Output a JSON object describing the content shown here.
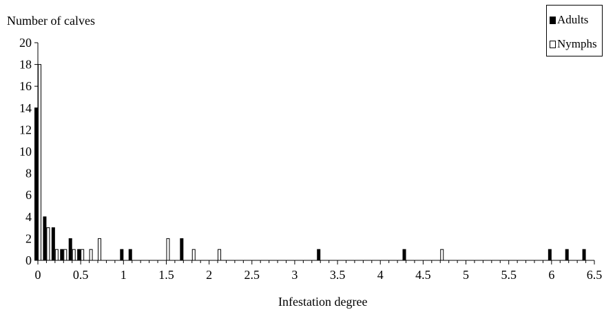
{
  "chart_data": {
    "type": "bar",
    "xlabel": "Infestation degree",
    "ylabel": "Number of calves",
    "xlim": [
      0,
      6.5
    ],
    "ylim": [
      0,
      20
    ],
    "x_ticks": [
      "0",
      "0.5",
      "1",
      "1.5",
      "2",
      "2.5",
      "3",
      "3.5",
      "4",
      "4.5",
      "5",
      "5.5",
      "6",
      "6.5"
    ],
    "y_ticks": [
      "0",
      "2",
      "4",
      "6",
      "8",
      "10",
      "12",
      "14",
      "16",
      "18",
      "20"
    ],
    "legend_position": "top-right",
    "series": [
      {
        "name": "Adults",
        "color": "#000000",
        "points": [
          {
            "x": 0,
            "y": 14
          },
          {
            "x": 0.1,
            "y": 4
          },
          {
            "x": 0.2,
            "y": 3
          },
          {
            "x": 0.3,
            "y": 1
          },
          {
            "x": 0.4,
            "y": 2
          },
          {
            "x": 0.5,
            "y": 1
          },
          {
            "x": 1.0,
            "y": 1
          },
          {
            "x": 1.1,
            "y": 1
          },
          {
            "x": 1.7,
            "y": 2
          },
          {
            "x": 3.3,
            "y": 1
          },
          {
            "x": 4.3,
            "y": 1
          },
          {
            "x": 6.0,
            "y": 1
          },
          {
            "x": 6.2,
            "y": 1
          },
          {
            "x": 6.4,
            "y": 1
          }
        ]
      },
      {
        "name": "Nymphs",
        "color": "#ffffff",
        "points": [
          {
            "x": 0,
            "y": 18
          },
          {
            "x": 0.1,
            "y": 3
          },
          {
            "x": 0.2,
            "y": 1
          },
          {
            "x": 0.3,
            "y": 1
          },
          {
            "x": 0.4,
            "y": 1
          },
          {
            "x": 0.5,
            "y": 1
          },
          {
            "x": 0.6,
            "y": 1
          },
          {
            "x": 0.7,
            "y": 2
          },
          {
            "x": 1.5,
            "y": 2
          },
          {
            "x": 1.8,
            "y": 1
          },
          {
            "x": 2.1,
            "y": 1
          },
          {
            "x": 4.7,
            "y": 1
          }
        ]
      }
    ]
  }
}
